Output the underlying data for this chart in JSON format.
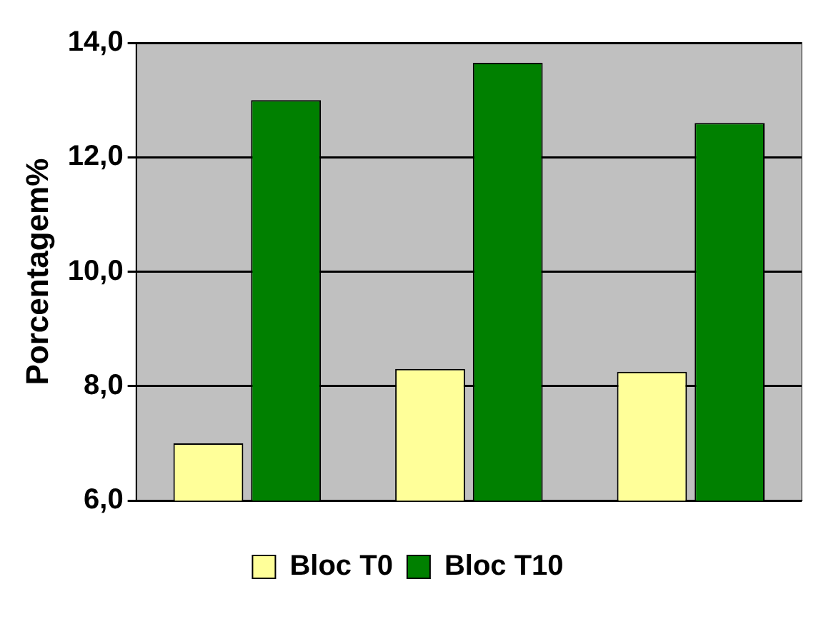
{
  "chart_data": {
    "type": "bar",
    "ylabel": "Porcentagem%",
    "categories": [
      null,
      null,
      null
    ],
    "series": [
      {
        "name": "Bloc T0",
        "color": "#ffff99",
        "values": [
          7.0,
          8.3,
          8.25
        ]
      },
      {
        "name": "Bloc T10",
        "color": "#008000",
        "values": [
          13.0,
          13.65,
          12.6
        ]
      }
    ],
    "ylim": [
      6,
      14
    ],
    "yticks": [
      {
        "value": 6,
        "label": "6,0"
      },
      {
        "value": 8,
        "label": "8,0"
      },
      {
        "value": 10,
        "label": "10,0"
      },
      {
        "value": 12,
        "label": "12,0"
      },
      {
        "value": 14,
        "label": "14,0"
      }
    ],
    "grid": "y",
    "legend": "bottom"
  }
}
